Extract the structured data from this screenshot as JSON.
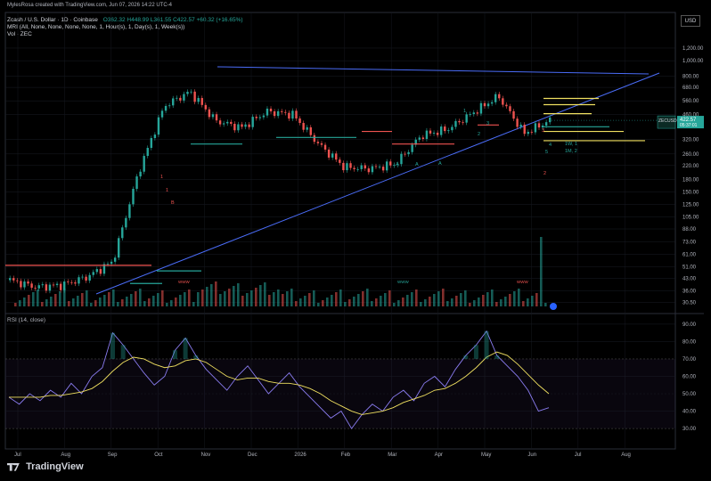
{
  "created_by": "MylesRosa created with TradingView.com, Jun 07, 2026 14:22 UTC-4",
  "header": {
    "symbol": "Zcash / U.S. Dollar · 1D · Coinbase",
    "ohlc": "O362.32 H448.99 L361.55 C422.57 +60.32 (+16.65%)",
    "mri": "MRI (All, None, None, None, None, 1, Hour(s), 1, Day(s), 1, Week(s))",
    "vol": "Vol · ZEC"
  },
  "currency": "USD",
  "rsi_label": "RSI (14, close)",
  "brand": "TradingView",
  "price_tag": {
    "symbol": "ZECUSD",
    "price": "422.57",
    "countdown": "05:37:01"
  },
  "colors": {
    "up": "#26a69a",
    "down": "#ef5350",
    "trend": "#4a6cf7",
    "rsi": "#8a7cf0",
    "rsi_ma": "#f0e060"
  },
  "chart_data": [
    {
      "type": "line",
      "name": "price",
      "y_scale": "log",
      "x_ticks": [
        "Jul",
        "Aug",
        "Sep",
        "Oct",
        "Nov",
        "Dec",
        "2026",
        "Feb",
        "Mar",
        "Apr",
        "May",
        "Jun",
        "Jul",
        "Aug"
      ],
      "y_ticks": [
        "1,200.00",
        "1,000.00",
        "800.00",
        "680.00",
        "560.00",
        "460.00",
        "320.00",
        "260.00",
        "220.00",
        "180.00",
        "150.00",
        "125.00",
        "105.00",
        "88.00",
        "73.00",
        "61.00",
        "51.00",
        "43.00",
        "36.00",
        "30.50"
      ],
      "x": [
        "Jul",
        "Aug",
        "Sep",
        "Sep",
        "Oct",
        "Oct",
        "Nov",
        "Nov",
        "Dec",
        "Dec",
        "2026",
        "2026",
        "Feb",
        "Feb",
        "Mar",
        "Mar",
        "Apr",
        "Apr",
        "May",
        "May",
        "Jun",
        "Jun"
      ],
      "values": [
        42,
        38,
        39,
        44,
        55,
        200,
        520,
        640,
        420,
        380,
        480,
        460,
        300,
        215,
        210,
        225,
        340,
        370,
        470,
        600,
        350,
        422.57
      ],
      "annotations": [
        "1",
        "B",
        "1",
        "A",
        "A",
        "A",
        "1",
        "2",
        "3",
        "4",
        "5",
        "1W, 1",
        "1M, 2",
        "2",
        "3"
      ],
      "markers": [
        "WWW",
        "WWW",
        "WWW"
      ]
    },
    {
      "type": "line",
      "name": "RSI (14, close)",
      "y_ticks": [
        "90.00",
        "80.00",
        "70.00",
        "60.00",
        "50.00",
        "40.00",
        "30.00"
      ],
      "ylim": [
        28,
        92
      ],
      "rsi": [
        48,
        44,
        50,
        46,
        52,
        48,
        56,
        50,
        60,
        65,
        85,
        78,
        70,
        62,
        55,
        60,
        75,
        82,
        72,
        64,
        58,
        52,
        60,
        66,
        58,
        50,
        56,
        62,
        54,
        48,
        42,
        36,
        40,
        30,
        38,
        44,
        40,
        48,
        52,
        46,
        56,
        60,
        54,
        64,
        72,
        78,
        86,
        72,
        66,
        60,
        52,
        40,
        42
      ],
      "rsi_ma": [
        48,
        48,
        48,
        48,
        49,
        49,
        50,
        51,
        53,
        57,
        63,
        68,
        71,
        70,
        67,
        65,
        66,
        69,
        70,
        68,
        64,
        60,
        58,
        59,
        59,
        57,
        56,
        56,
        55,
        53,
        50,
        46,
        43,
        40,
        38,
        39,
        40,
        42,
        45,
        47,
        49,
        52,
        53,
        56,
        60,
        65,
        71,
        74,
        72,
        67,
        61,
        55,
        50
      ]
    }
  ]
}
